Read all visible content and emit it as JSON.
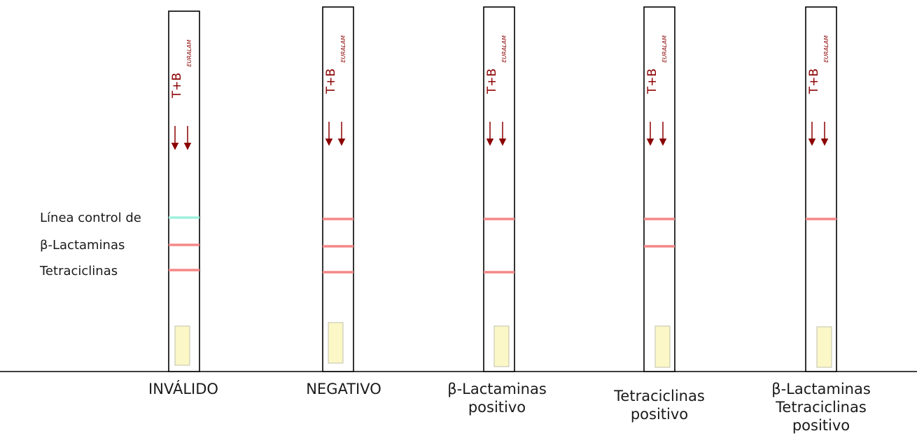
{
  "brand": "EURALAM",
  "strip_code": "T+B",
  "line_labels": [
    "Línea control de",
    "β-Lactaminas",
    "Tetraciclinas"
  ],
  "colors": {
    "line_red": "#f58787",
    "line_cyan": "#9ff0dc",
    "arrow": "#8b0000",
    "sample_pad": "#fbf7c6"
  },
  "strips": [
    {
      "caption": [
        "INVÁLIDO"
      ],
      "lines": [
        "cyan",
        "red",
        "red"
      ]
    },
    {
      "caption": [
        "NEGATIVO"
      ],
      "lines": [
        "red",
        "red",
        "red"
      ]
    },
    {
      "caption": [
        "β-Lactaminas",
        "positivo"
      ],
      "lines": [
        "red",
        null,
        "red"
      ]
    },
    {
      "caption": [
        "Tetraciclinas",
        "positivo"
      ],
      "lines": [
        "red",
        "red",
        null
      ]
    },
    {
      "caption": [
        "β-Lactaminas",
        "Tetraciclinas",
        "positivo"
      ],
      "lines": [
        "red",
        null,
        null
      ]
    }
  ]
}
